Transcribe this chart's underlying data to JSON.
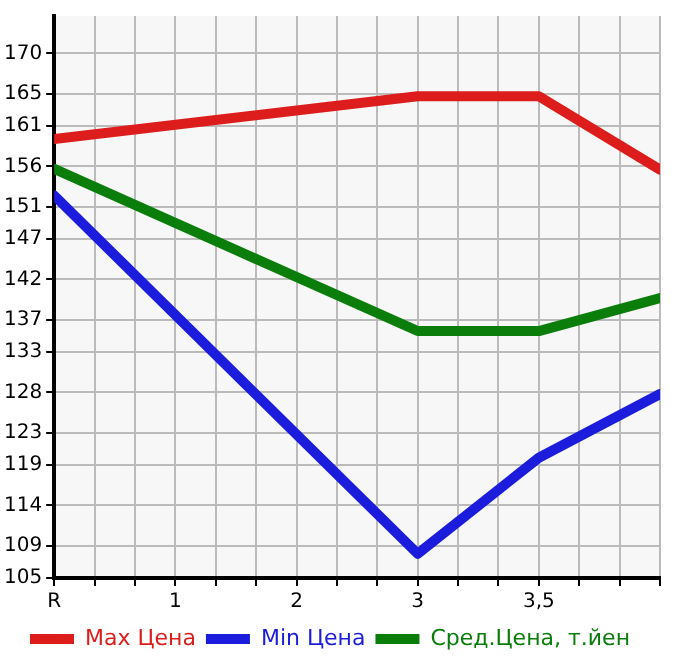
{
  "chart_data": {
    "type": "line",
    "categories": [
      "R",
      "1",
      "2",
      "3",
      "3,5",
      null
    ],
    "series": [
      {
        "name": "Max Цена",
        "color": "#dd1c1c",
        "values": [
          159.4,
          null,
          null,
          164.7,
          164.7,
          155.6
        ]
      },
      {
        "name": "Min Цена",
        "color": "#1c1cdd",
        "values": [
          152.4,
          null,
          null,
          108.0,
          119.9,
          127.8
        ]
      },
      {
        "name": "Сред.Цена, т.йен",
        "color": "#0a7d0a",
        "values": [
          155.7,
          null,
          null,
          135.6,
          135.6,
          139.7
        ]
      }
    ],
    "ylim": [
      105,
      174.64
    ],
    "yticks": [
      105,
      109,
      114,
      119,
      123,
      128,
      133,
      137,
      142,
      147,
      151,
      156,
      161,
      165,
      170
    ],
    "grid": true,
    "legend": "bottom",
    "marker": "none",
    "line_style": "solid"
  }
}
